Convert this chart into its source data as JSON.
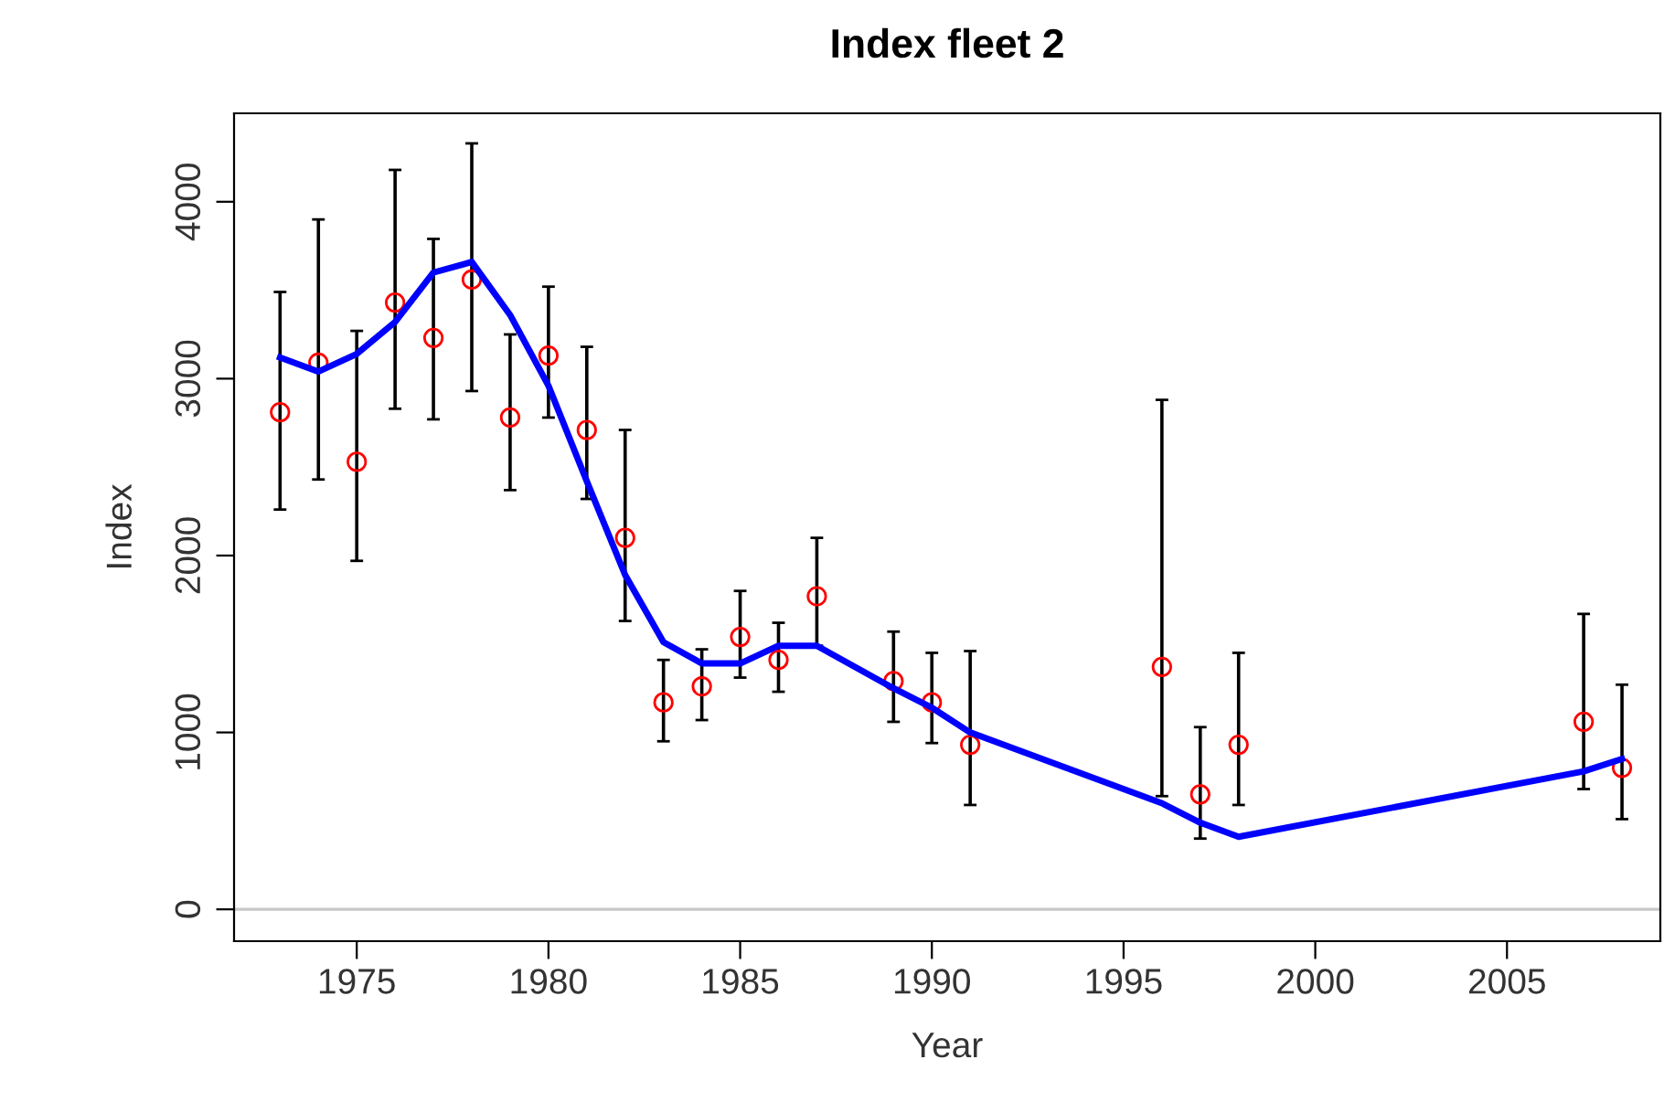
{
  "chart_data": {
    "type": "scatter",
    "title": "Index fleet 2",
    "xlabel": "Year",
    "ylabel": "Index",
    "xlim": [
      1971.8,
      2009.0
    ],
    "ylim": [
      -180,
      4500
    ],
    "xticks": [
      1975,
      1980,
      1985,
      1990,
      1995,
      2000,
      2005
    ],
    "yticks": [
      0,
      1000,
      2000,
      3000,
      4000
    ],
    "grid": false,
    "ref_lines": [
      {
        "axis": "y",
        "value": 0,
        "color": "#c8c8c8"
      }
    ],
    "series": [
      {
        "color": "#ff0000",
        "marker": "circle",
        "x": [
          1973,
          1974,
          1975,
          1976,
          1977,
          1978,
          1979,
          1980,
          1981,
          1982,
          1983,
          1984,
          1985,
          1986,
          1987,
          1989,
          1990,
          1991,
          1996,
          1997,
          1998,
          2007,
          2008
        ],
        "values": [
          2810,
          3090,
          2530,
          3430,
          3230,
          3560,
          2780,
          3130,
          2710,
          2100,
          1170,
          1260,
          1540,
          1410,
          1770,
          1290,
          1170,
          930,
          1370,
          650,
          930,
          1060,
          800
        ],
        "errors": [
          [
            2260,
            3490
          ],
          [
            2430,
            3900
          ],
          [
            1970,
            3270
          ],
          [
            2830,
            4180
          ],
          [
            2770,
            3790
          ],
          [
            2930,
            4330
          ],
          [
            2370,
            3250
          ],
          [
            2780,
            3520
          ],
          [
            2320,
            3180
          ],
          [
            1630,
            2710
          ],
          [
            950,
            1410
          ],
          [
            1070,
            1470
          ],
          [
            1310,
            1800
          ],
          [
            1230,
            1620
          ],
          [
            1490,
            2100
          ],
          [
            1060,
            1570
          ],
          [
            940,
            1450
          ],
          [
            590,
            1460
          ],
          [
            640,
            2880
          ],
          [
            400,
            1030
          ],
          [
            590,
            1450
          ],
          [
            680,
            1670
          ],
          [
            510,
            1270
          ]
        ]
      },
      {
        "type": "line",
        "color": "#0000ff",
        "marker": "none",
        "line_style": "solid",
        "x": [
          1973,
          1974,
          1975,
          1976,
          1977,
          1978,
          1979,
          1980,
          1981,
          1982,
          1983,
          1984,
          1985,
          1986,
          1987,
          1989,
          1990,
          1991,
          1996,
          1997,
          1998,
          2007,
          2008
        ],
        "values": [
          3120,
          3040,
          3140,
          3320,
          3600,
          3660,
          3360,
          2960,
          2420,
          1890,
          1510,
          1390,
          1390,
          1490,
          1490,
          1250,
          1140,
          1000,
          600,
          490,
          410,
          780,
          850
        ]
      }
    ]
  }
}
